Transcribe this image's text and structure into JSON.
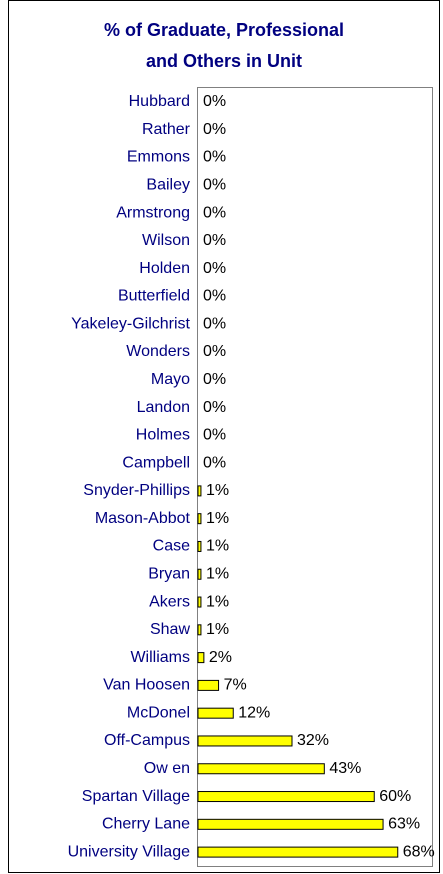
{
  "chart_data": {
    "type": "bar",
    "orientation": "horizontal",
    "title": [
      "% of Graduate, Professional",
      "and Others in Unit"
    ],
    "categories": [
      "Hubbard",
      "Rather",
      "Emmons",
      "Bailey",
      "Armstrong",
      "Wilson",
      "Holden",
      "Butterfield",
      "Yakeley-Gilchrist",
      "Wonders",
      "Mayo",
      "Landon",
      "Holmes",
      "Campbell",
      "Snyder-Phillips",
      "Mason-Abbot",
      "Case",
      "Bryan",
      "Akers",
      "Shaw",
      "Williams",
      "Van Hoosen",
      "McDonel",
      "Off-Campus",
      "Ow en",
      "Spartan Village",
      "Cherry Lane",
      "University Village"
    ],
    "values": [
      0,
      0,
      0,
      0,
      0,
      0,
      0,
      0,
      0,
      0,
      0,
      0,
      0,
      0,
      1,
      1,
      1,
      1,
      1,
      1,
      2,
      7,
      12,
      32,
      43,
      60,
      63,
      68
    ],
    "value_labels": [
      "0%",
      "0%",
      "0%",
      "0%",
      "0%",
      "0%",
      "0%",
      "0%",
      "0%",
      "0%",
      "0%",
      "0%",
      "0%",
      "0%",
      "1%",
      "1%",
      "1%",
      "1%",
      "1%",
      "1%",
      "2%",
      "7%",
      "12%",
      "32%",
      "43%",
      "60%",
      "63%",
      "68%"
    ],
    "color": "#ffff00",
    "xlim": [
      0,
      80
    ]
  }
}
